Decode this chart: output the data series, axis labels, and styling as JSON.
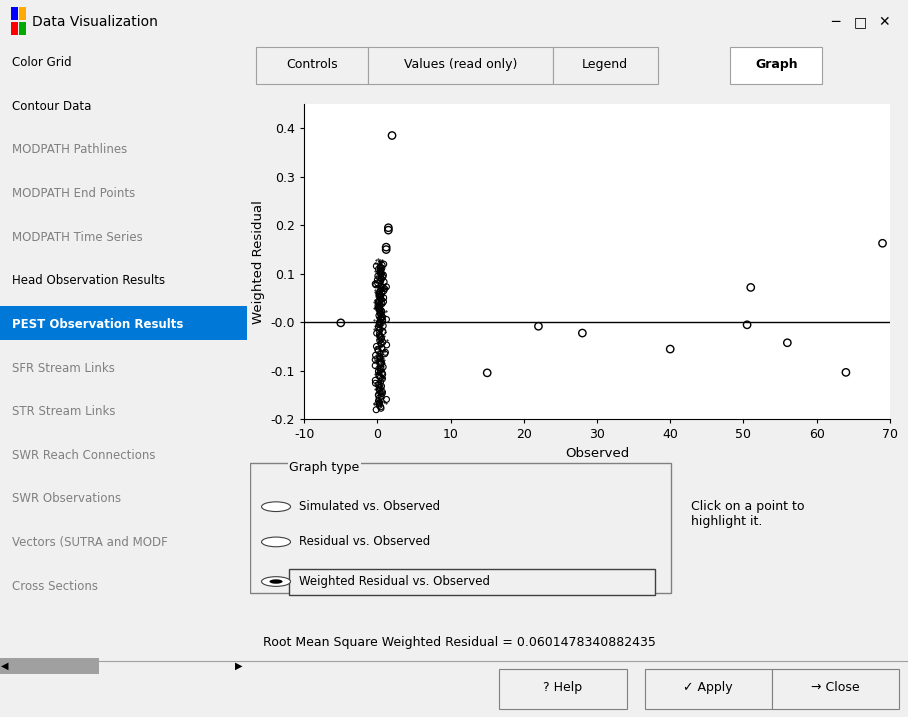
{
  "fig_width": 9.08,
  "fig_height": 7.17,
  "dpi": 100,
  "bg_color": "#f0f0f0",
  "white": "#ffffff",
  "plot_bg": "#ffffff",
  "title_bar_color": "#1a3a6b",
  "title_text": "Data Visualization",
  "sidebar_items": [
    "Color Grid",
    "Contour Data",
    "MODPATH Pathlines",
    "MODPATH End Points",
    "MODPATH Time Series",
    "Head Observation Results",
    "PEST Observation Results",
    "SFR Stream Links",
    "STR Stream Links",
    "SWR Reach Connections",
    "SWR Observations",
    "Vectors (SUTRA and MODF",
    "Cross Sections"
  ],
  "selected_item": "PEST Observation Results",
  "tabs": [
    "Controls",
    "Values (read only)",
    "Legend",
    "Graph"
  ],
  "active_tab": "Graph",
  "xlabel": "Observed",
  "ylabel": "Weighted Residual",
  "xlim": [
    -10,
    70
  ],
  "ylim": [
    -0.2,
    0.45
  ],
  "xticks": [
    -10,
    0,
    10,
    20,
    30,
    40,
    50,
    60,
    70
  ],
  "yticks": [
    -0.2,
    -0.1,
    0.0,
    0.1,
    0.2,
    0.3,
    0.4
  ],
  "ytick_labels": [
    "-0.2",
    "-0.1",
    "-0.0",
    "0.1",
    "0.2",
    "0.3",
    "0.4"
  ],
  "hline_y": 0.0,
  "isolated_points": [
    [
      2.0,
      0.385
    ],
    [
      -5.0,
      -0.001
    ],
    [
      1.5,
      0.195
    ],
    [
      1.5,
      0.19
    ],
    [
      1.2,
      0.155
    ],
    [
      1.2,
      0.15
    ],
    [
      15.0,
      -0.104
    ],
    [
      22.0,
      -0.008
    ],
    [
      28.0,
      -0.022
    ],
    [
      40.0,
      -0.055
    ],
    [
      51.0,
      0.072
    ],
    [
      50.5,
      -0.005
    ],
    [
      56.0,
      -0.042
    ],
    [
      64.0,
      -0.103
    ],
    [
      69.0,
      0.163
    ]
  ],
  "graph_type_label": "Graph type",
  "radio_options": [
    "Simulated vs. Observed",
    "Residual vs. Observed",
    "Weighted Residual vs. Observed"
  ],
  "selected_radio": 2,
  "rms_text": "Root Mean Square Weighted Residual = 0.0601478340882435",
  "click_hint": "Click on a point to\nhighlight it.",
  "bottom_buttons": [
    "? Help",
    "✓ Apply",
    "→ Close"
  ],
  "scrollbar_color": "#c0c0c0",
  "highlight_blue": "#0078d7",
  "gray_text": "#808080",
  "dark_text": "#000000",
  "selected_bg": "#0078d7",
  "selected_fg": "#ffffff"
}
